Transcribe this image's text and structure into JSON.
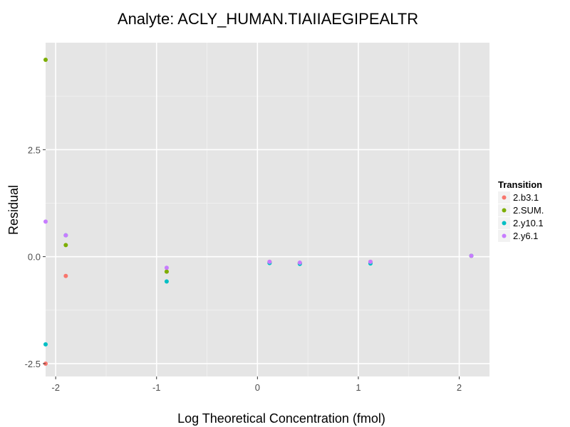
{
  "chart_data": {
    "type": "scatter",
    "title": "Analyte: ACLY_HUMAN.TIAIIAEGIPEALTR",
    "xlabel": "Log Theoretical Concentration (fmol)",
    "ylabel": "Residual",
    "xlim": [
      -2.1,
      2.3
    ],
    "ylim": [
      -2.8,
      5.0
    ],
    "x_ticks": [
      -2,
      -1,
      0,
      1,
      2
    ],
    "x_tick_labels": [
      "-2",
      "-1",
      "0",
      "1",
      "2"
    ],
    "y_ticks": [
      -2.5,
      0,
      2.5
    ],
    "y_tick_labels": [
      "-2.5",
      "0.0",
      "2.5"
    ],
    "grid": true,
    "background": "#e5e5e5",
    "legend": {
      "title": "Transition",
      "position": "right"
    },
    "series": [
      {
        "name": "2.b3.1",
        "color": "#f8766d",
        "points": [
          {
            "x": -2.1,
            "y": -2.5
          },
          {
            "x": -1.9,
            "y": -0.45
          },
          {
            "x": -0.9,
            "y": -0.35
          },
          {
            "x": 0.12,
            "y": -0.12
          },
          {
            "x": 0.42,
            "y": -0.15
          },
          {
            "x": 1.12,
            "y": -0.12
          },
          {
            "x": 2.12,
            "y": 0.02
          }
        ]
      },
      {
        "name": "2.SUM.",
        "color": "#7cae00",
        "points": [
          {
            "x": -2.1,
            "y": 4.6
          },
          {
            "x": -1.9,
            "y": 0.27
          },
          {
            "x": -0.9,
            "y": -0.35
          },
          {
            "x": 0.12,
            "y": -0.13
          },
          {
            "x": 0.42,
            "y": -0.15
          },
          {
            "x": 1.12,
            "y": -0.13
          },
          {
            "x": 2.12,
            "y": 0.02
          }
        ]
      },
      {
        "name": "2.y10.1",
        "color": "#00bfc4",
        "points": [
          {
            "x": -2.1,
            "y": -2.05
          },
          {
            "x": -1.9,
            "y": 0.5
          },
          {
            "x": -0.9,
            "y": -0.58
          },
          {
            "x": 0.12,
            "y": -0.15
          },
          {
            "x": 0.42,
            "y": -0.17
          },
          {
            "x": 1.12,
            "y": -0.16
          },
          {
            "x": 2.12,
            "y": 0.02
          }
        ]
      },
      {
        "name": "2.y6.1",
        "color": "#c77cff",
        "points": [
          {
            "x": -2.1,
            "y": 0.82
          },
          {
            "x": -1.9,
            "y": 0.5
          },
          {
            "x": -0.9,
            "y": -0.26
          },
          {
            "x": 0.12,
            "y": -0.12
          },
          {
            "x": 0.42,
            "y": -0.14
          },
          {
            "x": 1.12,
            "y": -0.12
          },
          {
            "x": 2.12,
            "y": 0.02
          }
        ]
      }
    ]
  }
}
